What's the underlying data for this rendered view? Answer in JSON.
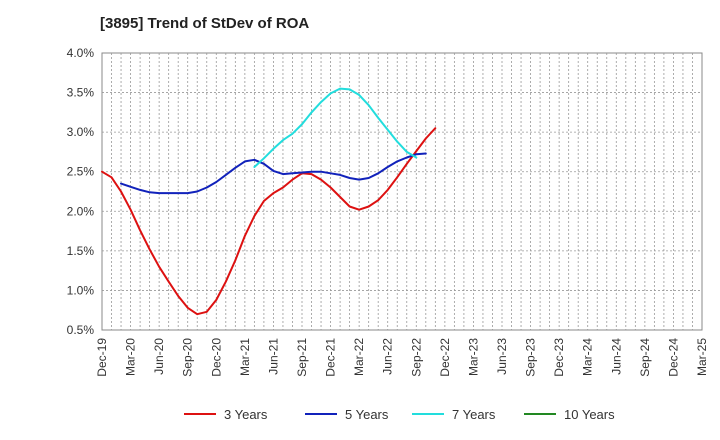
{
  "chart_data": {
    "type": "line",
    "title": "[3895]  Trend of StDev of ROA",
    "xlabel": "",
    "ylabel": "",
    "x_ticks": [
      "Dec-19",
      "Mar-20",
      "Jun-20",
      "Sep-20",
      "Dec-20",
      "Mar-21",
      "Jun-21",
      "Sep-21",
      "Dec-21",
      "Mar-22",
      "Jun-22",
      "Sep-22",
      "Dec-22",
      "Mar-23",
      "Jun-23",
      "Sep-23",
      "Dec-23",
      "Mar-24",
      "Jun-24",
      "Sep-24",
      "Dec-24",
      "Mar-25"
    ],
    "y_ticks": [
      "4.0%",
      "3.5%",
      "3.0%",
      "2.5%",
      "2.0%",
      "1.5%",
      "1.0%",
      "0.5%"
    ],
    "ylim": [
      0.5,
      4.0
    ],
    "grid": true,
    "legend_position": "bottom",
    "series": [
      {
        "name": "3 Years",
        "color": "#dd1111",
        "values": [
          2.5,
          2.43,
          2.25,
          2.02,
          1.76,
          1.52,
          1.3,
          1.11,
          0.93,
          0.78,
          0.7,
          0.73,
          0.88,
          1.11,
          1.38,
          1.69,
          1.94,
          2.13,
          2.23,
          2.3,
          2.4,
          2.48,
          2.47,
          2.4,
          2.3,
          2.18,
          2.06,
          2.02,
          2.06,
          2.14,
          2.27,
          2.43,
          2.6,
          2.76,
          2.92,
          3.05
        ]
      },
      {
        "name": "5 Years",
        "color": "#1122bb",
        "values": [
          null,
          null,
          2.35,
          2.31,
          2.27,
          2.24,
          2.23,
          2.23,
          2.23,
          2.23,
          2.25,
          2.3,
          2.37,
          2.46,
          2.55,
          2.63,
          2.65,
          2.6,
          2.51,
          2.47,
          2.48,
          2.49,
          2.5,
          2.5,
          2.48,
          2.46,
          2.42,
          2.4,
          2.42,
          2.48,
          2.56,
          2.63,
          2.68,
          2.72,
          2.73
        ]
      },
      {
        "name": "7 Years",
        "color": "#22dddd",
        "values": [
          null,
          null,
          null,
          null,
          null,
          null,
          null,
          null,
          null,
          null,
          null,
          null,
          null,
          null,
          null,
          null,
          2.56,
          2.67,
          2.79,
          2.9,
          2.98,
          3.1,
          3.25,
          3.38,
          3.49,
          3.55,
          3.54,
          3.47,
          3.34,
          3.18,
          3.03,
          2.88,
          2.75,
          2.68
        ]
      },
      {
        "name": "10 Years",
        "color": "#228822",
        "values": []
      }
    ]
  }
}
